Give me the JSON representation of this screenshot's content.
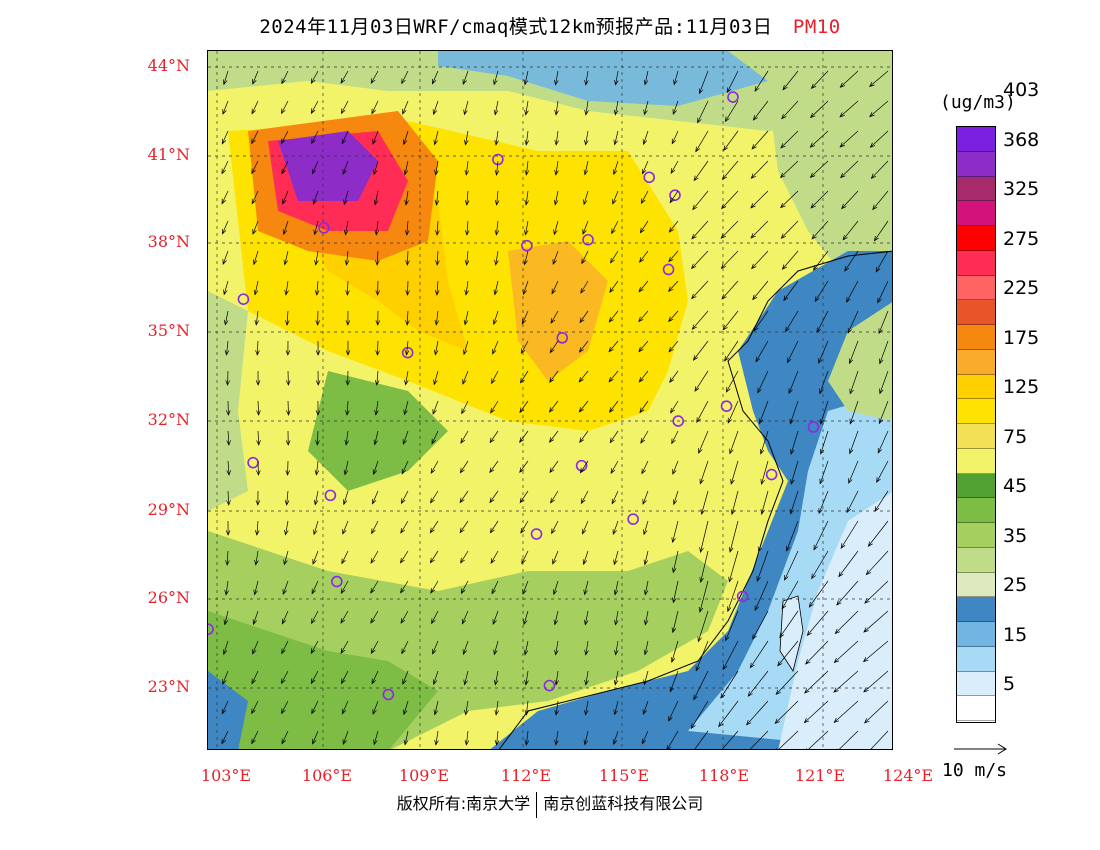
{
  "title": {
    "main": "2024年11月03日WRF/cmaq模式12km预报产品:11月03日",
    "product": "PM10"
  },
  "lat_labels": [
    "44°N",
    "41°N",
    "38°N",
    "35°N",
    "32°N",
    "29°N",
    "26°N",
    "23°N"
  ],
  "lon_labels": [
    "103°E",
    "106°E",
    "109°E",
    "112°E",
    "115°E",
    "118°E",
    "121°E",
    "124°E"
  ],
  "colorbar": {
    "unit": "(ug/m3)",
    "colors": [
      "#ffffff",
      "#d9eefa",
      "#a7daf4",
      "#71b6e3",
      "#3e87c2",
      "#dde9bf",
      "#c1dc88",
      "#a5d05f",
      "#7dbd45",
      "#52a233",
      "#f3f36a",
      "#f3e054",
      "#ffe300",
      "#ffd000",
      "#f9ac2b",
      "#f6880f",
      "#e85528",
      "#ff6464",
      "#ff2d55",
      "#ff0000",
      "#d4127c",
      "#a62a6c",
      "#8e2cc8",
      "#7b20e0"
    ],
    "labels": [
      "5",
      "15",
      "25",
      "35",
      "45",
      "75",
      "125",
      "175",
      "225",
      "275",
      "325",
      "368",
      "403"
    ]
  },
  "wind_reference": {
    "label": "10 m/s"
  },
  "cities": [
    {
      "lat": 42.9,
      "lon": 119.0
    },
    {
      "lat": 40.8,
      "lon": 111.7
    },
    {
      "lat": 40.2,
      "lon": 116.4
    },
    {
      "lat": 39.6,
      "lon": 117.2
    },
    {
      "lat": 38.5,
      "lon": 106.3
    },
    {
      "lat": 38.1,
      "lon": 114.5
    },
    {
      "lat": 37.9,
      "lon": 112.6
    },
    {
      "lat": 37.1,
      "lon": 117.0
    },
    {
      "lat": 36.1,
      "lon": 103.8
    },
    {
      "lat": 34.8,
      "lon": 113.7
    },
    {
      "lat": 34.3,
      "lon": 108.9
    },
    {
      "lat": 32.5,
      "lon": 118.8
    },
    {
      "lat": 32.0,
      "lon": 117.3
    },
    {
      "lat": 31.8,
      "lon": 121.5
    },
    {
      "lat": 30.6,
      "lon": 104.1
    },
    {
      "lat": 30.5,
      "lon": 114.3
    },
    {
      "lat": 30.2,
      "lon": 120.2
    },
    {
      "lat": 29.5,
      "lon": 106.5
    },
    {
      "lat": 28.7,
      "lon": 115.9
    },
    {
      "lat": 28.2,
      "lon": 112.9
    },
    {
      "lat": 26.6,
      "lon": 106.7
    },
    {
      "lat": 26.1,
      "lon": 119.3
    },
    {
      "lat": 25.0,
      "lon": 102.7
    },
    {
      "lat": 23.1,
      "lon": 113.3
    },
    {
      "lat": 22.8,
      "lon": 108.3
    }
  ],
  "copyright": {
    "text1": "版权所有:南京大学",
    "text2": "南京创蓝科技有限公司"
  }
}
